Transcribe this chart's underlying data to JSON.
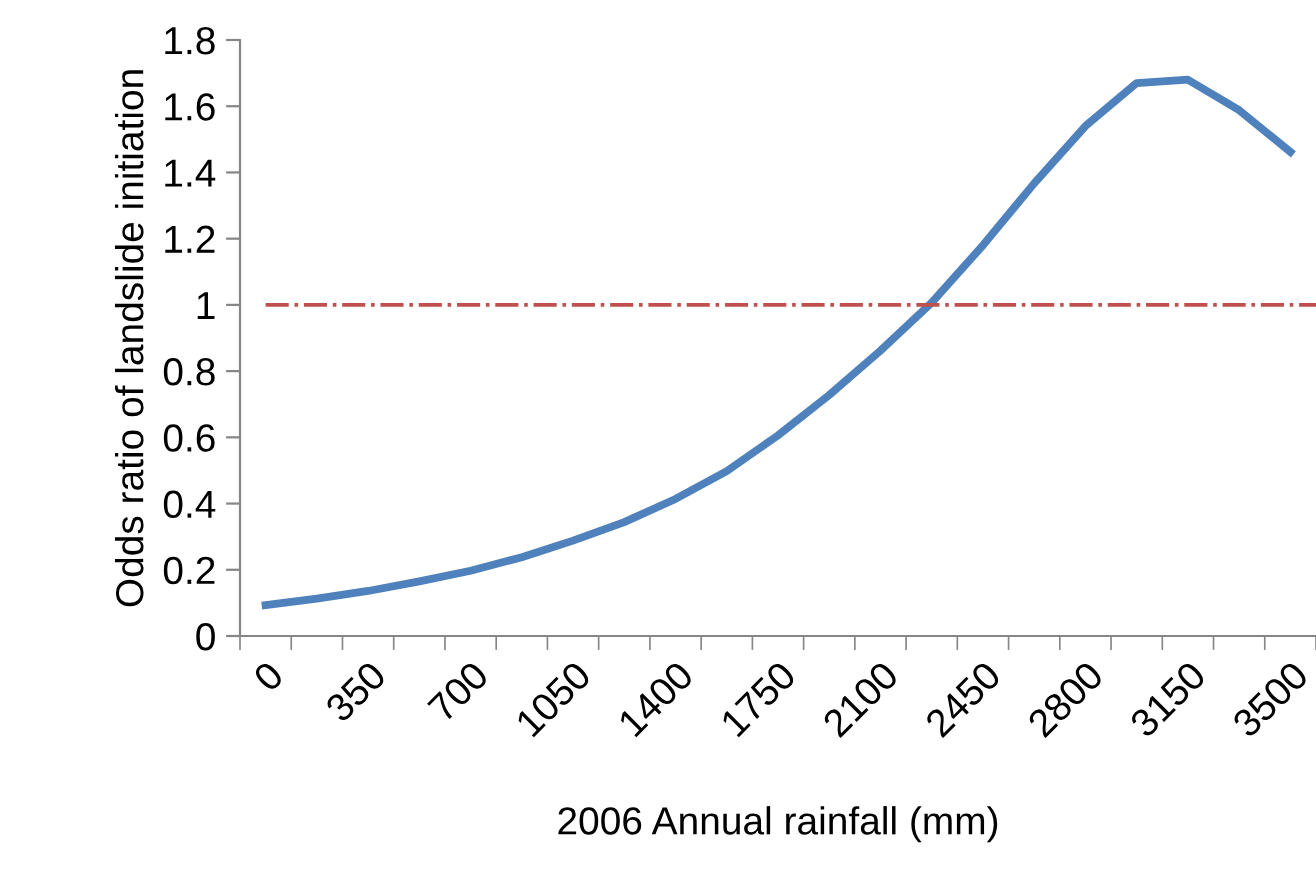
{
  "chart_data": {
    "type": "line",
    "xlabel": "2006 Annual rainfall (mm)",
    "ylabel": "Odds ratio of landslide initiation",
    "categories": [
      "0",
      null,
      "350",
      null,
      "700",
      null,
      "1050",
      null,
      "1400",
      null,
      "1750",
      null,
      "2100",
      null,
      "2450",
      null,
      "2800",
      null,
      "3150",
      null,
      "3500"
    ],
    "series": [
      {
        "color": "#4f81bd",
        "values": [
          0.093,
          0.113,
          0.136,
          0.165,
          0.197,
          0.238,
          0.288,
          0.344,
          0.414,
          0.498,
          0.606,
          0.728,
          0.862,
          1.007,
          1.18,
          1.367,
          1.54,
          1.67,
          1.68,
          1.588,
          1.462
        ]
      }
    ],
    "ylim": [
      0,
      1.8
    ],
    "yticks": [
      0,
      0.2,
      0.4,
      0.6,
      0.8,
      1,
      1.2,
      1.4,
      1.6,
      1.8
    ],
    "ref_lines": [
      {
        "axis": "y",
        "value": 1,
        "color": "#c0504d",
        "line_style": "dashdot"
      }
    ],
    "grid": false,
    "legend": false,
    "marker": "none",
    "line_style": "solid"
  }
}
